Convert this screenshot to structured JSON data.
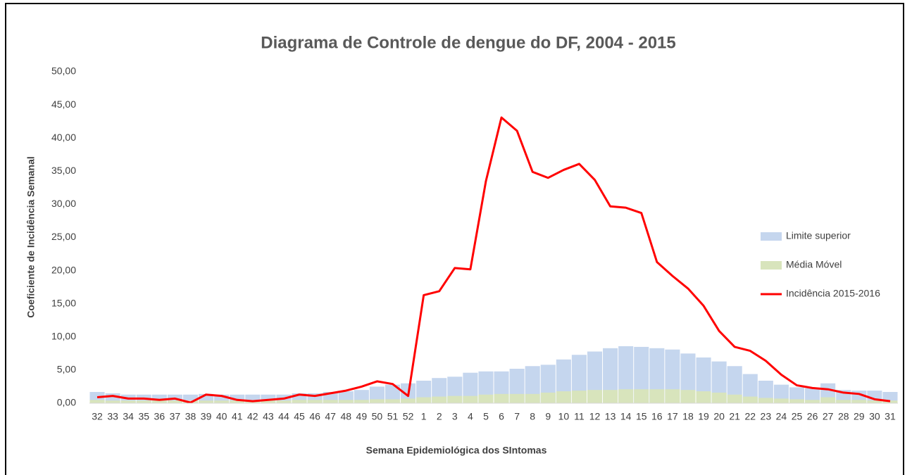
{
  "chart_data": {
    "type": "bar-line",
    "title": "Diagrama de Controle de dengue do DF, 2004 - 2015",
    "x_label": "Semana Epidemiológica dos SIntomas",
    "y_label": "Coeficiente de Incidência Semanal",
    "categories": [
      "32",
      "33",
      "34",
      "35",
      "36",
      "37",
      "38",
      "39",
      "40",
      "41",
      "42",
      "43",
      "44",
      "45",
      "46",
      "47",
      "48",
      "49",
      "50",
      "51",
      "52",
      "1",
      "2",
      "3",
      "4",
      "5",
      "6",
      "7",
      "8",
      "9",
      "10",
      "11",
      "12",
      "13",
      "14",
      "15",
      "16",
      "17",
      "18",
      "19",
      "20",
      "21",
      "22",
      "23",
      "24",
      "25",
      "26",
      "27",
      "28",
      "29",
      "30",
      "31"
    ],
    "series": [
      {
        "name": "Limite superior",
        "kind": "bar",
        "color": "#c5d6ee",
        "values": [
          1.7,
          1.5,
          1.3,
          1.3,
          1.3,
          1.3,
          1.3,
          1.4,
          1.3,
          1.3,
          1.3,
          1.3,
          1.3,
          1.5,
          1.5,
          1.7,
          1.8,
          2.0,
          2.5,
          2.8,
          3.0,
          3.4,
          3.8,
          4.0,
          4.6,
          4.8,
          4.8,
          5.2,
          5.6,
          5.8,
          6.6,
          7.3,
          7.8,
          8.3,
          8.6,
          8.5,
          8.3,
          8.1,
          7.5,
          6.9,
          6.3,
          5.6,
          4.4,
          3.4,
          2.8,
          2.4,
          2.3,
          3.0,
          2.0,
          1.9,
          1.9,
          1.7
        ]
      },
      {
        "name": "Média Móvel",
        "kind": "bar",
        "color": "#d8e4bc",
        "values": [
          0.5,
          0.4,
          0.4,
          0.4,
          0.4,
          0.4,
          0.4,
          0.4,
          0.4,
          0.4,
          0.4,
          0.4,
          0.4,
          0.5,
          0.5,
          0.5,
          0.5,
          0.5,
          0.6,
          0.6,
          0.7,
          0.9,
          1.0,
          1.1,
          1.1,
          1.3,
          1.4,
          1.4,
          1.4,
          1.6,
          1.8,
          1.9,
          2.0,
          2.0,
          2.1,
          2.1,
          2.1,
          2.1,
          2.0,
          1.8,
          1.6,
          1.3,
          1.0,
          0.8,
          0.7,
          0.6,
          0.5,
          0.9,
          0.5,
          0.5,
          0.4,
          0.4
        ]
      },
      {
        "name": "Incidência 2015-2016",
        "kind": "line",
        "color": "#ff0000",
        "values": [
          0.9,
          1.1,
          0.7,
          0.7,
          0.5,
          0.7,
          0.1,
          1.3,
          1.1,
          0.5,
          0.3,
          0.5,
          0.7,
          1.3,
          1.1,
          1.5,
          1.9,
          2.5,
          3.3,
          2.9,
          1.1,
          16.3,
          16.9,
          20.4,
          20.2,
          33.5,
          43.1,
          41.1,
          34.9,
          34.0,
          35.2,
          36.1,
          33.7,
          29.7,
          29.5,
          28.7,
          21.3,
          19.2,
          17.3,
          14.7,
          10.9,
          8.5,
          7.9,
          6.4,
          4.3,
          2.7,
          2.3,
          2.1,
          1.6,
          1.4,
          0.6,
          0.3
        ]
      }
    ],
    "ylim": [
      0,
      50
    ],
    "yticks": [
      {
        "value": 0,
        "label": "0,00"
      },
      {
        "value": 5,
        "label": "5,00"
      },
      {
        "value": 10,
        "label": "10,00"
      },
      {
        "value": 15,
        "label": "15,00"
      },
      {
        "value": 20,
        "label": "20,00"
      },
      {
        "value": 25,
        "label": "25,00"
      },
      {
        "value": 30,
        "label": "30,00"
      },
      {
        "value": 35,
        "label": "35,00"
      },
      {
        "value": 40,
        "label": "40,00"
      },
      {
        "value": 45,
        "label": "45,00"
      },
      {
        "value": 50,
        "label": "50,00"
      }
    ],
    "grid": false,
    "legend": "right"
  }
}
